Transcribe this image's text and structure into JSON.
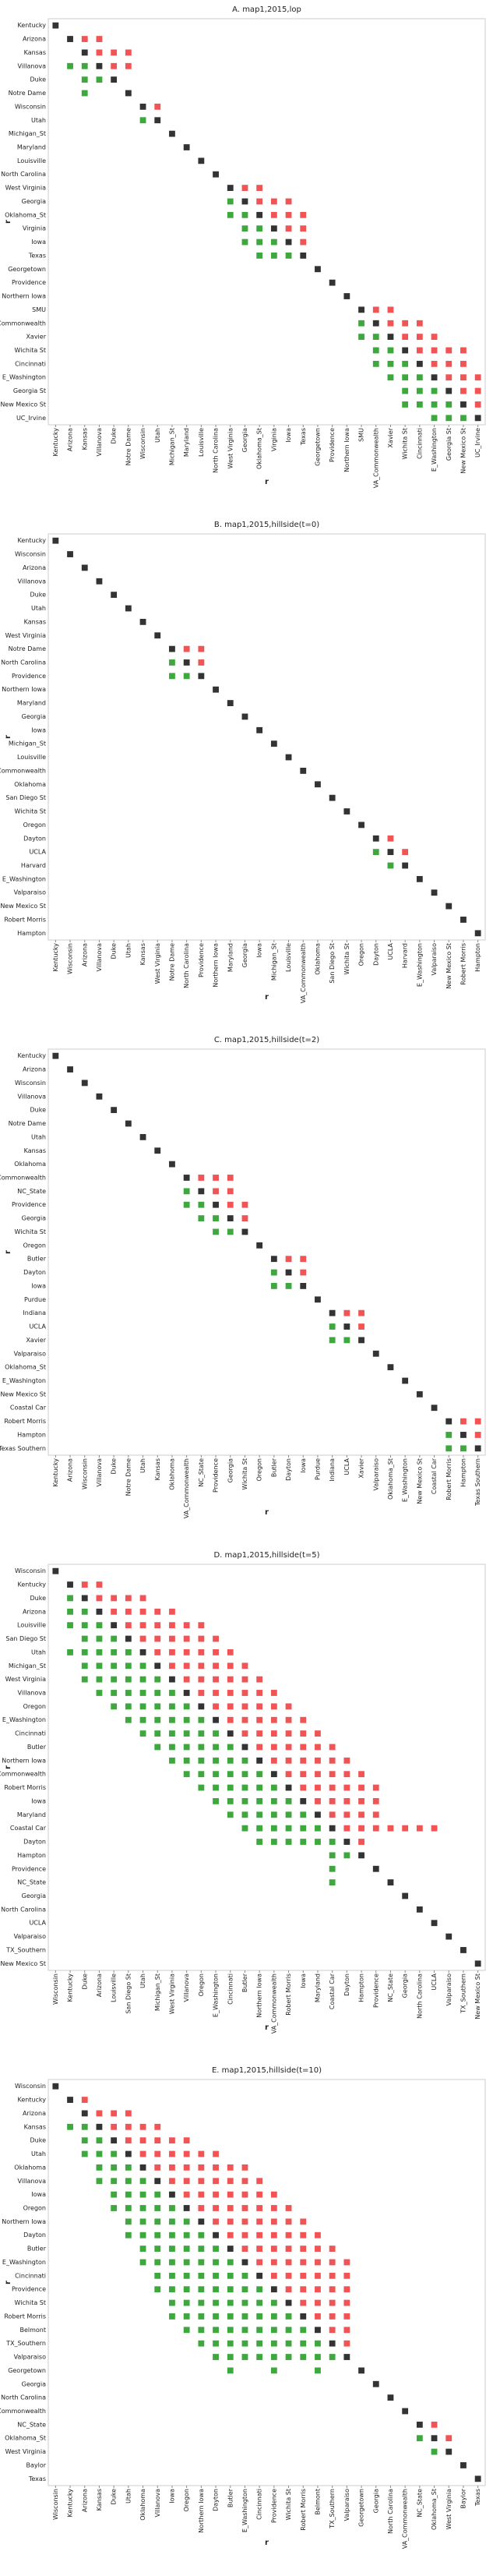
{
  "chart_data": [
    {
      "type": "matrix",
      "title": "A. map1,2015,lop",
      "xlabel": "r",
      "ylabel": "r",
      "colors": {
        "upper": "#f05454",
        "lower": "#3ea83e",
        "diagonal": "#333333"
      },
      "categories": [
        "Kentucky",
        "Arizona",
        "Kansas",
        "Villanova",
        "Duke",
        "Notre Dame",
        "Wisconsin",
        "Utah",
        "Michigan_St",
        "Maryland",
        "Louisville",
        "North Carolina",
        "West Virginia",
        "Georgia",
        "Oklahoma_St",
        "Virginia",
        "Iowa",
        "Texas",
        "Georgetown",
        "Providence",
        "Northern Iowa",
        "SMU",
        "VA_Commonwealth",
        "Xavier",
        "Wichita St",
        "Cincinnati",
        "E_Washington",
        "Georgia St",
        "New Mexico St",
        "UC_Irvine"
      ],
      "red": [
        [],
        [
          2,
          3
        ],
        [
          3,
          4,
          5
        ],
        [
          4,
          5
        ],
        [],
        [],
        [
          7
        ],
        [],
        [],
        [],
        [],
        [],
        [
          13,
          14
        ],
        [
          14,
          15,
          16
        ],
        [
          15,
          16,
          17
        ],
        [
          16,
          17
        ],
        [
          17
        ],
        [],
        [],
        [],
        [],
        [
          22,
          23
        ],
        [
          23,
          24,
          25
        ],
        [
          24,
          25,
          26
        ],
        [
          25,
          26,
          27,
          28
        ],
        [
          26,
          27,
          28
        ],
        [
          27,
          28,
          29
        ],
        [
          28,
          29
        ],
        [
          29
        ],
        []
      ],
      "green": [
        [],
        [],
        [],
        [
          1,
          2
        ],
        [
          2,
          3
        ],
        [
          2
        ],
        [],
        [
          6
        ],
        [],
        [],
        [],
        [],
        [],
        [
          12
        ],
        [
          12,
          13
        ],
        [
          13,
          14
        ],
        [
          13,
          14,
          15
        ],
        [
          14,
          15,
          16
        ],
        [],
        [],
        [],
        [],
        [
          21
        ],
        [
          21,
          22
        ],
        [
          22,
          23
        ],
        [
          22,
          23,
          24
        ],
        [
          23,
          24,
          25
        ],
        [
          24,
          25,
          26
        ],
        [
          24,
          25,
          26,
          27
        ],
        [
          26,
          27,
          28
        ]
      ]
    },
    {
      "type": "matrix",
      "title": "B. map1,2015,hillside(t=0)",
      "xlabel": "r",
      "ylabel": "r",
      "colors": {
        "upper": "#f05454",
        "lower": "#3ea83e",
        "diagonal": "#333333"
      },
      "categories": [
        "Kentucky",
        "Wisconsin",
        "Arizona",
        "Villanova",
        "Duke",
        "Utah",
        "Kansas",
        "West Virginia",
        "Notre Dame",
        "North Carolina",
        "Providence",
        "Northern Iowa",
        "Maryland",
        "Georgia",
        "Iowa",
        "Michigan_St",
        "Louisville",
        "VA_Commonwealth",
        "Oklahoma",
        "San Diego St",
        "Wichita St",
        "Oregon",
        "Dayton",
        "UCLA",
        "Harvard",
        "E_Washington",
        "Valparaiso",
        "New Mexico St",
        "Robert Morris",
        "Hampton"
      ],
      "red": [
        [],
        [],
        [],
        [],
        [],
        [],
        [],
        [],
        [
          9,
          10
        ],
        [
          10
        ],
        [],
        [],
        [],
        [],
        [],
        [],
        [],
        [],
        [],
        [],
        [],
        [],
        [
          23
        ],
        [
          24
        ],
        [],
        [],
        [],
        [],
        [],
        []
      ],
      "green": [
        [],
        [],
        [],
        [],
        [],
        [],
        [],
        [],
        [],
        [
          8
        ],
        [
          8,
          9
        ],
        [],
        [],
        [],
        [],
        [],
        [],
        [],
        [],
        [],
        [],
        [],
        [],
        [
          22
        ],
        [
          23
        ],
        [],
        [],
        [],
        [],
        []
      ]
    },
    {
      "type": "matrix",
      "title": "C. map1,2015,hillside(t=2)",
      "xlabel": "r",
      "ylabel": "r",
      "colors": {
        "upper": "#f05454",
        "lower": "#3ea83e",
        "diagonal": "#333333"
      },
      "categories": [
        "Kentucky",
        "Arizona",
        "Wisconsin",
        "Villanova",
        "Duke",
        "Notre Dame",
        "Utah",
        "Kansas",
        "Oklahoma",
        "VA_Commonwealth",
        "NC_State",
        "Providence",
        "Georgia",
        "Wichita St",
        "Oregon",
        "Butler",
        "Dayton",
        "Iowa",
        "Purdue",
        "Indiana",
        "UCLA",
        "Xavier",
        "Valparaiso",
        "Oklahoma_St",
        "E_Washington",
        "New Mexico St",
        "Coastal Car",
        "Robert Morris",
        "Hampton",
        "Texas Southern"
      ],
      "red": [
        [],
        [],
        [],
        [],
        [],
        [],
        [],
        [],
        [],
        [
          10,
          11,
          12
        ],
        [
          11,
          12
        ],
        [
          12,
          13
        ],
        [
          13
        ],
        [],
        [],
        [
          16,
          17
        ],
        [
          17
        ],
        [],
        [],
        [
          20,
          21
        ],
        [
          21
        ],
        [],
        [],
        [],
        [],
        [],
        [],
        [
          28,
          29
        ],
        [
          29
        ],
        []
      ],
      "green": [
        [],
        [],
        [],
        [],
        [],
        [],
        [],
        [],
        [],
        [],
        [
          9
        ],
        [
          9,
          10
        ],
        [
          10,
          11
        ],
        [
          11,
          12
        ],
        [],
        [],
        [
          15
        ],
        [
          15,
          16
        ],
        [],
        [],
        [
          19
        ],
        [
          19,
          20
        ],
        [],
        [],
        [],
        [],
        [],
        [],
        [
          27
        ],
        [
          27,
          28
        ]
      ]
    },
    {
      "type": "matrix",
      "title": "D. map1,2015,hillside(t=5)",
      "xlabel": "r",
      "ylabel": "r",
      "colors": {
        "upper": "#f05454",
        "lower": "#3ea83e",
        "diagonal": "#333333"
      },
      "categories": [
        "Wisconsin",
        "Kentucky",
        "Duke",
        "Arizona",
        "Louisville",
        "San Diego St",
        "Utah",
        "Michigan_St",
        "West Virginia",
        "Villanova",
        "Oregon",
        "E_Washington",
        "Cincinnati",
        "Butler",
        "Northern Iowa",
        "VA_Commonwealth",
        "Robert Morris",
        "Iowa",
        "Maryland",
        "Coastal Car",
        "Dayton",
        "Hampton",
        "Providence",
        "NC_State",
        "Georgia",
        "North Carolina",
        "UCLA",
        "Valparaiso",
        "TX_Southern",
        "New Mexico St"
      ],
      "red": [
        [],
        [
          2,
          3
        ],
        [
          3,
          4,
          5,
          6
        ],
        [
          4,
          5,
          6,
          7,
          8
        ],
        [
          5,
          6,
          7,
          8,
          9,
          10
        ],
        [
          6,
          7,
          8,
          9,
          10,
          11
        ],
        [
          7,
          8,
          9,
          10,
          11,
          12
        ],
        [
          8,
          9,
          10,
          11,
          12,
          13
        ],
        [
          9,
          10,
          11,
          12,
          13,
          14
        ],
        [
          10,
          11,
          12,
          13,
          14,
          15
        ],
        [
          11,
          12,
          13,
          14,
          15,
          16
        ],
        [
          12,
          13,
          14,
          15,
          16,
          17
        ],
        [
          13,
          14,
          15,
          16,
          17,
          18
        ],
        [
          14,
          15,
          16,
          17,
          18,
          19
        ],
        [
          15,
          16,
          17,
          18,
          19,
          20
        ],
        [
          16,
          17,
          18,
          19,
          20,
          21
        ],
        [
          17,
          18,
          19,
          20,
          21,
          22
        ],
        [
          18,
          19,
          20,
          21,
          22
        ],
        [
          19,
          20,
          21,
          22
        ],
        [
          20,
          21,
          22,
          23,
          24,
          25,
          26
        ],
        [
          21
        ],
        [],
        [],
        [],
        [],
        [],
        [],
        [],
        [],
        []
      ],
      "green": [
        [],
        [],
        [
          1
        ],
        [
          1,
          2
        ],
        [
          1,
          2,
          3
        ],
        [
          2,
          3,
          4
        ],
        [
          1,
          2,
          3,
          4,
          5
        ],
        [
          2,
          3,
          4,
          5,
          6
        ],
        [
          2,
          3,
          4,
          5,
          6,
          7
        ],
        [
          3,
          4,
          5,
          6,
          7,
          8
        ],
        [
          4,
          5,
          6,
          7,
          8,
          9
        ],
        [
          5,
          6,
          7,
          8,
          9,
          10
        ],
        [
          6,
          7,
          8,
          9,
          10,
          11
        ],
        [
          7,
          8,
          9,
          10,
          11,
          12
        ],
        [
          8,
          9,
          10,
          11,
          12,
          13
        ],
        [
          9,
          10,
          11,
          12,
          13,
          14
        ],
        [
          10,
          11,
          12,
          13,
          14,
          15
        ],
        [
          11,
          12,
          13,
          14,
          15,
          16
        ],
        [
          12,
          13,
          14,
          15,
          16,
          17
        ],
        [
          13,
          14,
          15,
          16,
          17,
          18
        ],
        [
          14,
          15,
          16,
          17,
          18,
          19
        ],
        [
          19,
          20
        ],
        [
          19
        ],
        [
          19
        ],
        [],
        [],
        [],
        [],
        [],
        []
      ]
    },
    {
      "type": "matrix",
      "title": "E. map1,2015,hillside(t=10)",
      "xlabel": "r",
      "ylabel": "r",
      "colors": {
        "upper": "#f05454",
        "lower": "#3ea83e",
        "diagonal": "#333333"
      },
      "categories": [
        "Wisconsin",
        "Kentucky",
        "Arizona",
        "Kansas",
        "Duke",
        "Utah",
        "Oklahoma",
        "Villanova",
        "Iowa",
        "Oregon",
        "Northern Iowa",
        "Dayton",
        "Butler",
        "E_Washington",
        "Cincinnati",
        "Providence",
        "Wichita St",
        "Robert Morris",
        "Belmont",
        "TX_Southern",
        "Valparaiso",
        "Georgetown",
        "Georgia",
        "North Carolina",
        "VA_Commonwealth",
        "NC_State",
        "Oklahoma_St",
        "West Virginia",
        "Baylor",
        "Texas"
      ],
      "red": [
        [],
        [
          2
        ],
        [
          3,
          4,
          5
        ],
        [
          4,
          5,
          6,
          7
        ],
        [
          5,
          6,
          7,
          8,
          9
        ],
        [
          6,
          7,
          8,
          9,
          10,
          11
        ],
        [
          7,
          8,
          9,
          10,
          11,
          12,
          13
        ],
        [
          8,
          9,
          10,
          11,
          12,
          13,
          14
        ],
        [
          9,
          10,
          11,
          12,
          13,
          14,
          15
        ],
        [
          10,
          11,
          12,
          13,
          14,
          15,
          16
        ],
        [
          11,
          12,
          13,
          14,
          15,
          16,
          17
        ],
        [
          12,
          13,
          14,
          15,
          16,
          17,
          18
        ],
        [
          13,
          14,
          15,
          16,
          17,
          18,
          19
        ],
        [
          14,
          15,
          16,
          17,
          18,
          19,
          20
        ],
        [
          15,
          16,
          17,
          18,
          19,
          20
        ],
        [
          16,
          17,
          18,
          19,
          20
        ],
        [
          17,
          18,
          19,
          20
        ],
        [
          18,
          19,
          20
        ],
        [
          19,
          20
        ],
        [
          20
        ],
        [],
        [],
        [],
        [],
        [],
        [
          26
        ],
        [
          27
        ],
        [],
        [],
        []
      ],
      "green": [
        [],
        [],
        [],
        [
          1,
          2
        ],
        [
          2,
          3
        ],
        [
          2,
          3,
          4
        ],
        [
          3,
          4,
          5
        ],
        [
          3,
          4,
          5,
          6
        ],
        [
          4,
          5,
          6,
          7
        ],
        [
          4,
          5,
          6,
          7,
          8
        ],
        [
          5,
          6,
          7,
          8,
          9
        ],
        [
          5,
          6,
          7,
          8,
          9,
          10
        ],
        [
          6,
          7,
          8,
          9,
          10,
          11
        ],
        [
          6,
          7,
          8,
          9,
          10,
          11,
          12
        ],
        [
          7,
          8,
          9,
          10,
          11,
          12,
          13
        ],
        [
          7,
          8,
          9,
          10,
          11,
          12,
          13,
          14
        ],
        [
          8,
          9,
          10,
          11,
          12,
          13,
          14,
          15
        ],
        [
          8,
          9,
          10,
          11,
          12,
          13,
          14,
          15,
          16
        ],
        [
          9,
          10,
          11,
          12,
          13,
          14,
          15,
          16,
          17
        ],
        [
          10,
          11,
          12,
          13,
          14,
          15,
          16,
          17,
          18
        ],
        [
          11,
          12,
          13,
          14,
          15,
          16,
          17,
          18,
          19
        ],
        [
          12,
          15,
          18
        ],
        [],
        [],
        [],
        [],
        [
          25
        ],
        [
          26
        ],
        [],
        []
      ]
    }
  ]
}
